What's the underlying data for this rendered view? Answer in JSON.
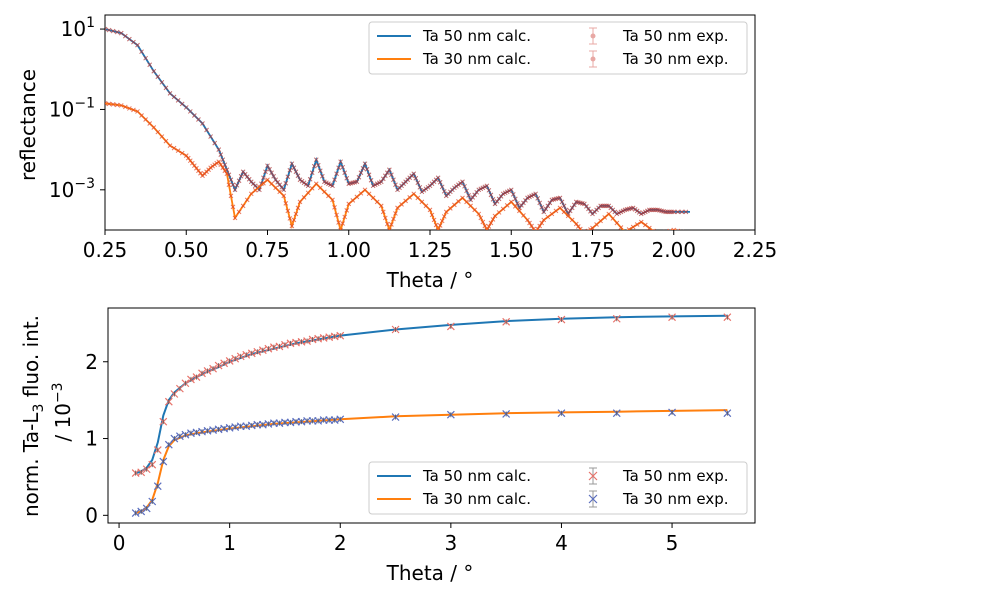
{
  "chart_data": [
    {
      "type": "line",
      "panel": "top",
      "xlabel": "Theta / °",
      "ylabel": "reflectance",
      "xlim": [
        0.25,
        2.25
      ],
      "y_scale": "log",
      "ylim_log10": [
        -4.0,
        1.35
      ],
      "x_ticks": [
        0.25,
        0.5,
        0.75,
        1.0,
        1.25,
        1.5,
        1.75,
        2.0,
        2.25
      ],
      "x_tick_labels": [
        "0.25",
        "0.50",
        "0.75",
        "1.00",
        "1.25",
        "1.50",
        "1.75",
        "2.00",
        "2.25"
      ],
      "y_tick_exponents": [
        1,
        -1,
        -3
      ],
      "y_tick_base": "10",
      "legend": {
        "position": "top-right",
        "entries": [
          "Ta 50 nm calc.",
          "Ta 30 nm calc.",
          "Ta 50 nm exp.",
          "Ta 30 nm exp."
        ]
      },
      "series": [
        {
          "name": "Ta 50 nm calc.",
          "color": "#1f77b4",
          "style": "line",
          "x": [
            0.25,
            0.3,
            0.35,
            0.4,
            0.45,
            0.5,
            0.55,
            0.6,
            0.625,
            0.65,
            0.675,
            0.7,
            0.725,
            0.75,
            0.775,
            0.8,
            0.825,
            0.85,
            0.875,
            0.9,
            0.925,
            0.95,
            0.975,
            1.0,
            1.025,
            1.05,
            1.075,
            1.1,
            1.125,
            1.15,
            1.175,
            1.2,
            1.225,
            1.25,
            1.275,
            1.3,
            1.325,
            1.35,
            1.375,
            1.4,
            1.425,
            1.45,
            1.475,
            1.5,
            1.525,
            1.55,
            1.575,
            1.6,
            1.625,
            1.65,
            1.675,
            1.7,
            1.725,
            1.75,
            1.775,
            1.8,
            1.825,
            1.85,
            1.875,
            1.9,
            1.925,
            1.95,
            1.975,
            2.0,
            2.05
          ],
          "y_log10": [
            1.0,
            0.9,
            0.6,
            -0.05,
            -0.6,
            -0.95,
            -1.35,
            -2.0,
            -2.5,
            -3.0,
            -2.55,
            -2.8,
            -3.0,
            -2.4,
            -2.75,
            -3.0,
            -2.35,
            -2.75,
            -2.9,
            -2.25,
            -2.8,
            -2.9,
            -2.3,
            -2.85,
            -2.8,
            -2.35,
            -2.9,
            -2.8,
            -2.5,
            -3.0,
            -2.8,
            -2.6,
            -3.05,
            -2.9,
            -2.7,
            -3.15,
            -2.95,
            -2.8,
            -3.25,
            -3.0,
            -2.9,
            -3.35,
            -3.1,
            -3.0,
            -3.45,
            -3.2,
            -3.1,
            -3.55,
            -3.25,
            -3.2,
            -3.6,
            -3.3,
            -3.35,
            -3.6,
            -3.4,
            -3.4,
            -3.6,
            -3.5,
            -3.45,
            -3.6,
            -3.5,
            -3.5,
            -3.55,
            -3.55,
            -3.55
          ]
        },
        {
          "name": "Ta 30 nm calc.",
          "color": "#ff7f0e",
          "style": "line",
          "x": [
            0.25,
            0.3,
            0.35,
            0.4,
            0.45,
            0.5,
            0.525,
            0.55,
            0.575,
            0.6,
            0.625,
            0.65,
            0.7,
            0.75,
            0.8,
            0.825,
            0.85,
            0.9,
            0.95,
            0.975,
            1.0,
            1.05,
            1.1,
            1.125,
            1.15,
            1.2,
            1.25,
            1.275,
            1.3,
            1.35,
            1.4,
            1.425,
            1.45,
            1.5,
            1.55,
            1.575,
            1.6,
            1.65,
            1.7,
            1.725,
            1.75,
            1.8,
            1.85,
            1.9,
            1.95,
            2.0,
            2.05
          ],
          "y_log10": [
            -0.85,
            -0.9,
            -1.05,
            -1.45,
            -1.9,
            -2.15,
            -2.4,
            -2.65,
            -2.45,
            -2.3,
            -2.6,
            -3.7,
            -3.1,
            -2.75,
            -3.15,
            -3.9,
            -3.3,
            -2.85,
            -3.25,
            -4.0,
            -3.35,
            -3.0,
            -3.4,
            -4.0,
            -3.45,
            -3.1,
            -3.5,
            -4.0,
            -3.55,
            -3.2,
            -3.6,
            -4.0,
            -3.65,
            -3.3,
            -3.75,
            -4.05,
            -3.75,
            -3.45,
            -3.85,
            -4.1,
            -3.95,
            -3.6,
            -4.05,
            -3.8,
            -4.1,
            -4.0,
            -4.1
          ]
        }
      ]
    },
    {
      "type": "line",
      "panel": "bottom",
      "xlabel": "Theta / °",
      "ylabel_line1": "norm. Ta-L",
      "ylabel_sub": "3",
      "ylabel_line1_rest": " fluo. int.",
      "ylabel_line2": "/ 10",
      "ylabel_line2_sup": "−3",
      "xlim": [
        -0.1,
        5.75
      ],
      "ylim": [
        -0.1,
        2.7
      ],
      "x_ticks": [
        0,
        1,
        2,
        3,
        4,
        5
      ],
      "x_tick_labels": [
        "0",
        "1",
        "2",
        "3",
        "4",
        "5"
      ],
      "y_ticks": [
        0,
        1,
        2
      ],
      "y_tick_labels": [
        "0",
        "1",
        "2"
      ],
      "legend": {
        "position": "lower-right",
        "entries": [
          "Ta 50 nm calc.",
          "Ta 30 nm calc.",
          "Ta 50 nm exp.",
          "Ta 30 nm exp."
        ]
      },
      "series": [
        {
          "name": "Ta 50 nm calc.",
          "color": "#1f77b4",
          "style": "line",
          "x": [
            0.15,
            0.2,
            0.25,
            0.3,
            0.35,
            0.4,
            0.45,
            0.5,
            0.6,
            0.7,
            0.8,
            0.9,
            1.0,
            1.2,
            1.4,
            1.6,
            1.8,
            2.0,
            2.5,
            3.0,
            3.5,
            4.0,
            4.5,
            5.0,
            5.5
          ],
          "y": [
            0.55,
            0.57,
            0.62,
            0.72,
            0.95,
            1.3,
            1.5,
            1.6,
            1.72,
            1.8,
            1.87,
            1.93,
            2.0,
            2.1,
            2.17,
            2.24,
            2.29,
            2.34,
            2.42,
            2.48,
            2.53,
            2.56,
            2.58,
            2.59,
            2.6
          ]
        },
        {
          "name": "Ta 30 nm calc.",
          "color": "#ff7f0e",
          "style": "line",
          "x": [
            0.15,
            0.2,
            0.25,
            0.3,
            0.35,
            0.4,
            0.45,
            0.5,
            0.6,
            0.7,
            0.8,
            0.9,
            1.0,
            1.2,
            1.4,
            1.6,
            1.8,
            2.0,
            2.5,
            3.0,
            3.5,
            4.0,
            4.5,
            5.0,
            5.5
          ],
          "y": [
            0.03,
            0.05,
            0.1,
            0.2,
            0.42,
            0.72,
            0.9,
            0.98,
            1.04,
            1.07,
            1.09,
            1.11,
            1.13,
            1.16,
            1.19,
            1.21,
            1.23,
            1.25,
            1.29,
            1.31,
            1.33,
            1.34,
            1.35,
            1.36,
            1.37
          ]
        },
        {
          "name": "Ta 50 nm exp.",
          "color": "#e8736a",
          "style": "marker-x",
          "x": [
            0.15,
            0.2,
            0.25,
            0.3,
            0.35,
            0.4,
            0.45,
            0.5,
            0.55,
            0.6,
            0.65,
            0.7,
            0.75,
            0.8,
            0.85,
            0.9,
            0.95,
            1.0,
            1.05,
            1.1,
            1.15,
            1.2,
            1.25,
            1.3,
            1.35,
            1.4,
            1.45,
            1.5,
            1.55,
            1.6,
            1.65,
            1.7,
            1.75,
            1.8,
            1.85,
            1.9,
            1.95,
            2.0,
            2.5,
            3.0,
            3.5,
            4.0,
            4.5,
            5.0,
            5.5
          ],
          "y": [
            0.55,
            0.56,
            0.6,
            0.66,
            0.85,
            1.22,
            1.48,
            1.58,
            1.65,
            1.72,
            1.77,
            1.8,
            1.85,
            1.88,
            1.91,
            1.95,
            1.98,
            2.01,
            2.04,
            2.07,
            2.09,
            2.11,
            2.13,
            2.15,
            2.17,
            2.19,
            2.2,
            2.22,
            2.24,
            2.25,
            2.26,
            2.27,
            2.29,
            2.3,
            2.31,
            2.32,
            2.33,
            2.34,
            2.42,
            2.46,
            2.52,
            2.55,
            2.56,
            2.58,
            2.58
          ]
        },
        {
          "name": "Ta 30 nm exp.",
          "color": "#5b6fbf",
          "style": "marker-x",
          "x": [
            0.15,
            0.2,
            0.25,
            0.3,
            0.35,
            0.4,
            0.45,
            0.5,
            0.55,
            0.6,
            0.65,
            0.7,
            0.75,
            0.8,
            0.85,
            0.9,
            0.95,
            1.0,
            1.05,
            1.1,
            1.15,
            1.2,
            1.25,
            1.3,
            1.35,
            1.4,
            1.45,
            1.5,
            1.55,
            1.6,
            1.65,
            1.7,
            1.75,
            1.8,
            1.85,
            1.9,
            1.95,
            2.0,
            2.5,
            3.0,
            3.5,
            4.0,
            4.5,
            5.0,
            5.5
          ],
          "y": [
            0.03,
            0.05,
            0.09,
            0.18,
            0.38,
            0.7,
            0.92,
            1.0,
            1.03,
            1.05,
            1.07,
            1.08,
            1.09,
            1.1,
            1.11,
            1.12,
            1.13,
            1.14,
            1.15,
            1.16,
            1.16,
            1.17,
            1.18,
            1.18,
            1.19,
            1.2,
            1.2,
            1.21,
            1.21,
            1.22,
            1.22,
            1.23,
            1.23,
            1.23,
            1.24,
            1.24,
            1.24,
            1.25,
            1.28,
            1.31,
            1.32,
            1.33,
            1.33,
            1.34,
            1.33
          ]
        }
      ]
    }
  ]
}
